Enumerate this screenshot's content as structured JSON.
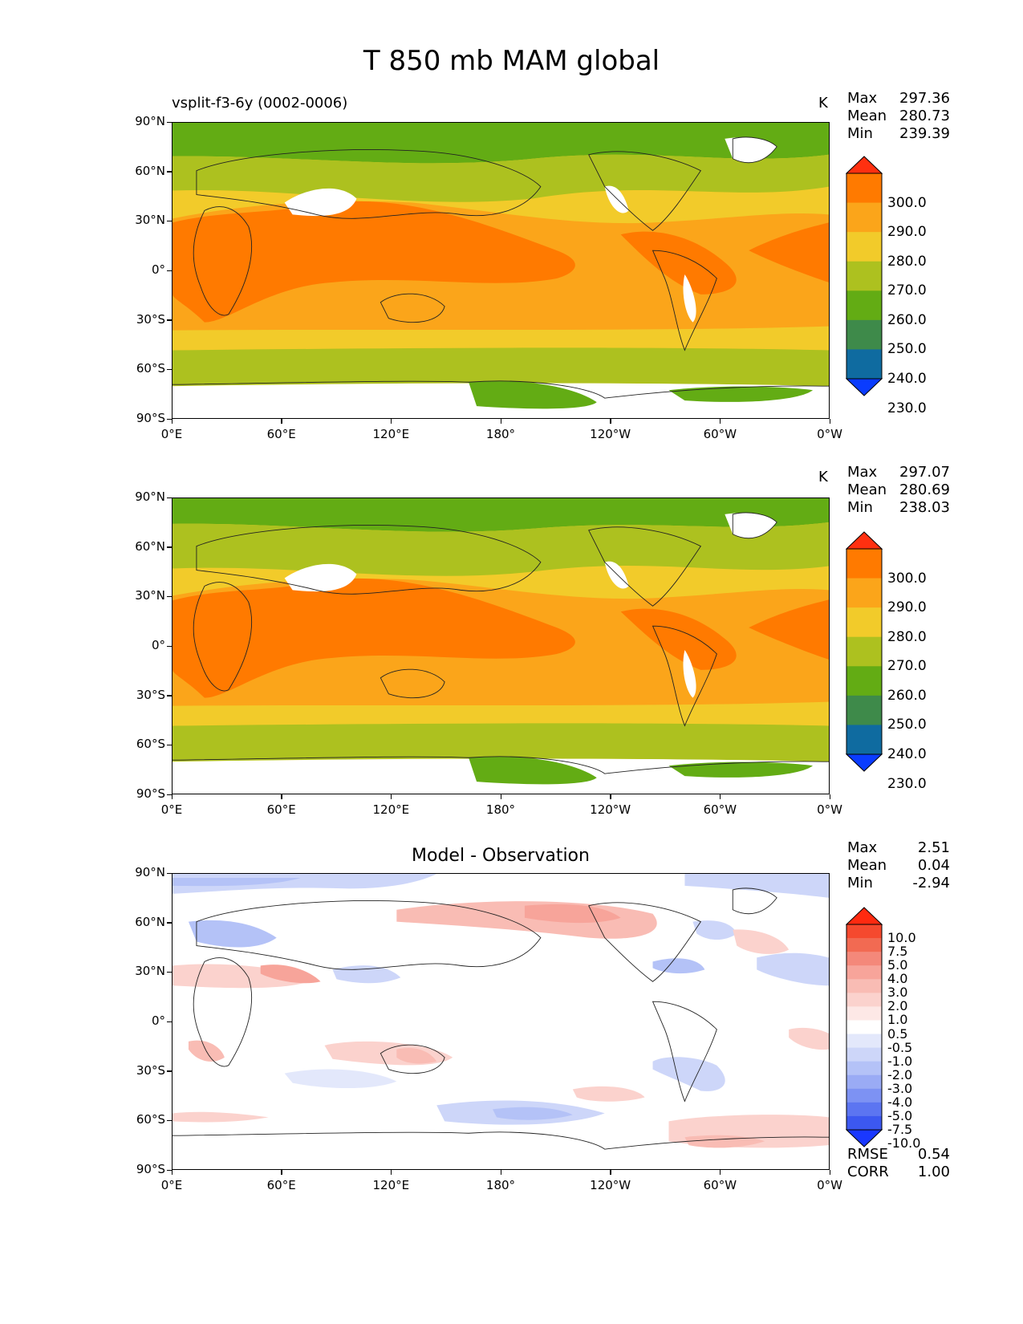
{
  "title": "T 850 mb MAM global",
  "axes": {
    "lat_ticks": [
      "90°N",
      "60°N",
      "30°N",
      "0°",
      "30°S",
      "60°S",
      "90°S"
    ],
    "lon_ticks": [
      "0°E",
      "60°E",
      "120°E",
      "180°",
      "120°W",
      "60°W",
      "0°W"
    ]
  },
  "panels": [
    {
      "subtitle": "vsplit-f3-6y (0002-0006)",
      "units": "K",
      "stats": [
        {
          "label": "Max",
          "value": "297.36"
        },
        {
          "label": "Mean",
          "value": "280.73"
        },
        {
          "label": "Min",
          "value": "239.39"
        }
      ]
    },
    {
      "subtitle": "",
      "units": "K",
      "stats": [
        {
          "label": "Max",
          "value": "297.07"
        },
        {
          "label": "Mean",
          "value": "280.69"
        },
        {
          "label": "Min",
          "value": "238.03"
        }
      ]
    },
    {
      "title": "Model - Observation",
      "stats": [
        {
          "label": "Max",
          "value": "2.51"
        },
        {
          "label": "Mean",
          "value": "0.04"
        },
        {
          "label": "Min",
          "value": "-2.94"
        }
      ],
      "metrics": [
        {
          "label": "RMSE",
          "value": "0.54"
        },
        {
          "label": "CORR",
          "value": "1.00"
        }
      ]
    }
  ],
  "colorbar_abs": {
    "labels": [
      "300.0",
      "290.0",
      "280.0",
      "270.0",
      "260.0",
      "250.0",
      "240.0",
      "230.0"
    ],
    "colors_top_to_bottom": [
      "#ff3010",
      "#ff7a00",
      "#fba51a",
      "#f2cb2a",
      "#adc11f",
      "#63ac14",
      "#3e8a4a",
      "#0f6ba0",
      "#0a3cff"
    ]
  },
  "colorbar_diff": {
    "labels": [
      "10.0",
      "7.5",
      "5.0",
      "4.0",
      "3.0",
      "2.0",
      "1.0",
      "0.5",
      "-0.5",
      "-1.0",
      "-2.0",
      "-3.0",
      "-4.0",
      "-5.0",
      "-7.5",
      "-10.0"
    ],
    "colors_top_to_bottom": [
      "#ff2a10",
      "#f5492e",
      "#f26a52",
      "#f4887a",
      "#f7a49a",
      "#f9bcb4",
      "#fbd2cd",
      "#fde8e6",
      "#ffffff",
      "#e3e8fb",
      "#cdd6f9",
      "#b4c2f7",
      "#9aabf5",
      "#7d92f3",
      "#5c75f1",
      "#3c58f0",
      "#1a38ff"
    ]
  }
}
